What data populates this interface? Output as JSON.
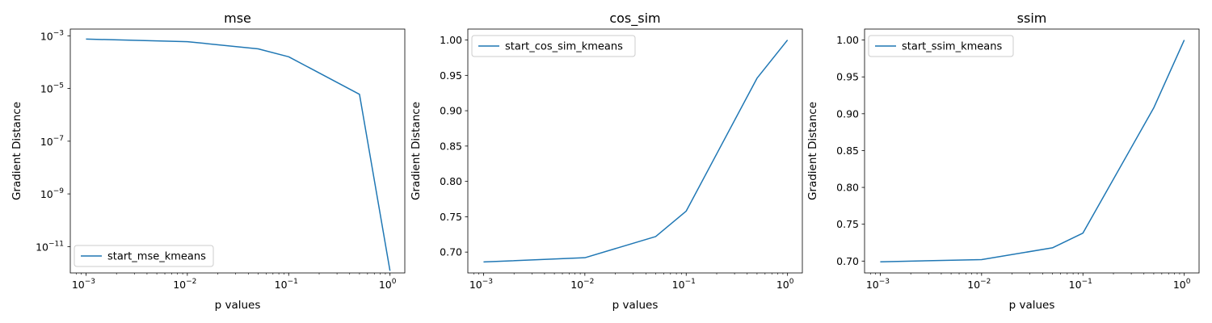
{
  "chart_data": [
    {
      "type": "line",
      "title": "mse",
      "xlabel": "p values",
      "ylabel": "Gradient Distance",
      "xscale": "log",
      "yscale": "log",
      "xlim": [
        0.0007,
        1.4
      ],
      "ylim": [
        1e-12,
        0.0018
      ],
      "xticks": [
        {
          "value": 0.001,
          "base": "10",
          "exp": "−3"
        },
        {
          "value": 0.01,
          "base": "10",
          "exp": "−2"
        },
        {
          "value": 0.1,
          "base": "10",
          "exp": "−1"
        },
        {
          "value": 1,
          "base": "10",
          "exp": "0"
        }
      ],
      "yticks": [
        {
          "value": 1e-11,
          "base": "10",
          "exp": "−11"
        },
        {
          "value": 1e-09,
          "base": "10",
          "exp": "−9"
        },
        {
          "value": 1e-07,
          "base": "10",
          "exp": "−7"
        },
        {
          "value": 1e-05,
          "base": "10",
          "exp": "−5"
        },
        {
          "value": 0.001,
          "base": "10",
          "exp": "−3"
        }
      ],
      "legend_position": "lower-left",
      "series": [
        {
          "name": "start_mse_kmeans",
          "x": [
            0.001,
            0.01,
            0.05,
            0.1,
            0.5,
            1.0
          ],
          "y": [
            0.00075,
            0.0006,
            0.00032,
            0.00016,
            6e-06,
            1.2e-12
          ]
        }
      ]
    },
    {
      "type": "line",
      "title": "cos_sim",
      "xlabel": "p values",
      "ylabel": "Gradient Distance",
      "xscale": "log",
      "yscale": "linear",
      "xlim": [
        0.0007,
        1.4
      ],
      "ylim": [
        0.6705,
        1.0155
      ],
      "xticks": [
        {
          "value": 0.001,
          "base": "10",
          "exp": "−3"
        },
        {
          "value": 0.01,
          "base": "10",
          "exp": "−2"
        },
        {
          "value": 0.1,
          "base": "10",
          "exp": "−1"
        },
        {
          "value": 1,
          "base": "10",
          "exp": "0"
        }
      ],
      "yticks": [
        {
          "value": 0.7,
          "label": "0.70"
        },
        {
          "value": 0.75,
          "label": "0.75"
        },
        {
          "value": 0.8,
          "label": "0.80"
        },
        {
          "value": 0.85,
          "label": "0.85"
        },
        {
          "value": 0.9,
          "label": "0.90"
        },
        {
          "value": 0.95,
          "label": "0.95"
        },
        {
          "value": 1.0,
          "label": "1.00"
        }
      ],
      "legend_position": "upper-left",
      "series": [
        {
          "name": "start_cos_sim_kmeans",
          "x": [
            0.001,
            0.01,
            0.05,
            0.1,
            0.5,
            1.0
          ],
          "y": [
            0.686,
            0.692,
            0.722,
            0.758,
            0.946,
            1.0
          ]
        }
      ]
    },
    {
      "type": "line",
      "title": "ssim",
      "xlabel": "p values",
      "ylabel": "Gradient Distance",
      "xscale": "log",
      "yscale": "linear",
      "xlim": [
        0.0007,
        1.4
      ],
      "ylim": [
        0.6839,
        1.0149
      ],
      "xticks": [
        {
          "value": 0.001,
          "base": "10",
          "exp": "−3"
        },
        {
          "value": 0.01,
          "base": "10",
          "exp": "−2"
        },
        {
          "value": 0.1,
          "base": "10",
          "exp": "−1"
        },
        {
          "value": 1,
          "base": "10",
          "exp": "0"
        }
      ],
      "yticks": [
        {
          "value": 0.7,
          "label": "0.70"
        },
        {
          "value": 0.75,
          "label": "0.75"
        },
        {
          "value": 0.8,
          "label": "0.80"
        },
        {
          "value": 0.85,
          "label": "0.85"
        },
        {
          "value": 0.9,
          "label": "0.90"
        },
        {
          "value": 0.95,
          "label": "0.95"
        },
        {
          "value": 1.0,
          "label": "1.00"
        }
      ],
      "legend_position": "upper-left",
      "series": [
        {
          "name": "start_ssim_kmeans",
          "x": [
            0.001,
            0.01,
            0.05,
            0.1,
            0.5,
            1.0
          ],
          "y": [
            0.699,
            0.702,
            0.718,
            0.738,
            0.908,
            1.0
          ]
        }
      ]
    }
  ],
  "colors": {
    "series": "#1f77b4",
    "axes": "#000000",
    "legend_border": "#cccccc"
  }
}
